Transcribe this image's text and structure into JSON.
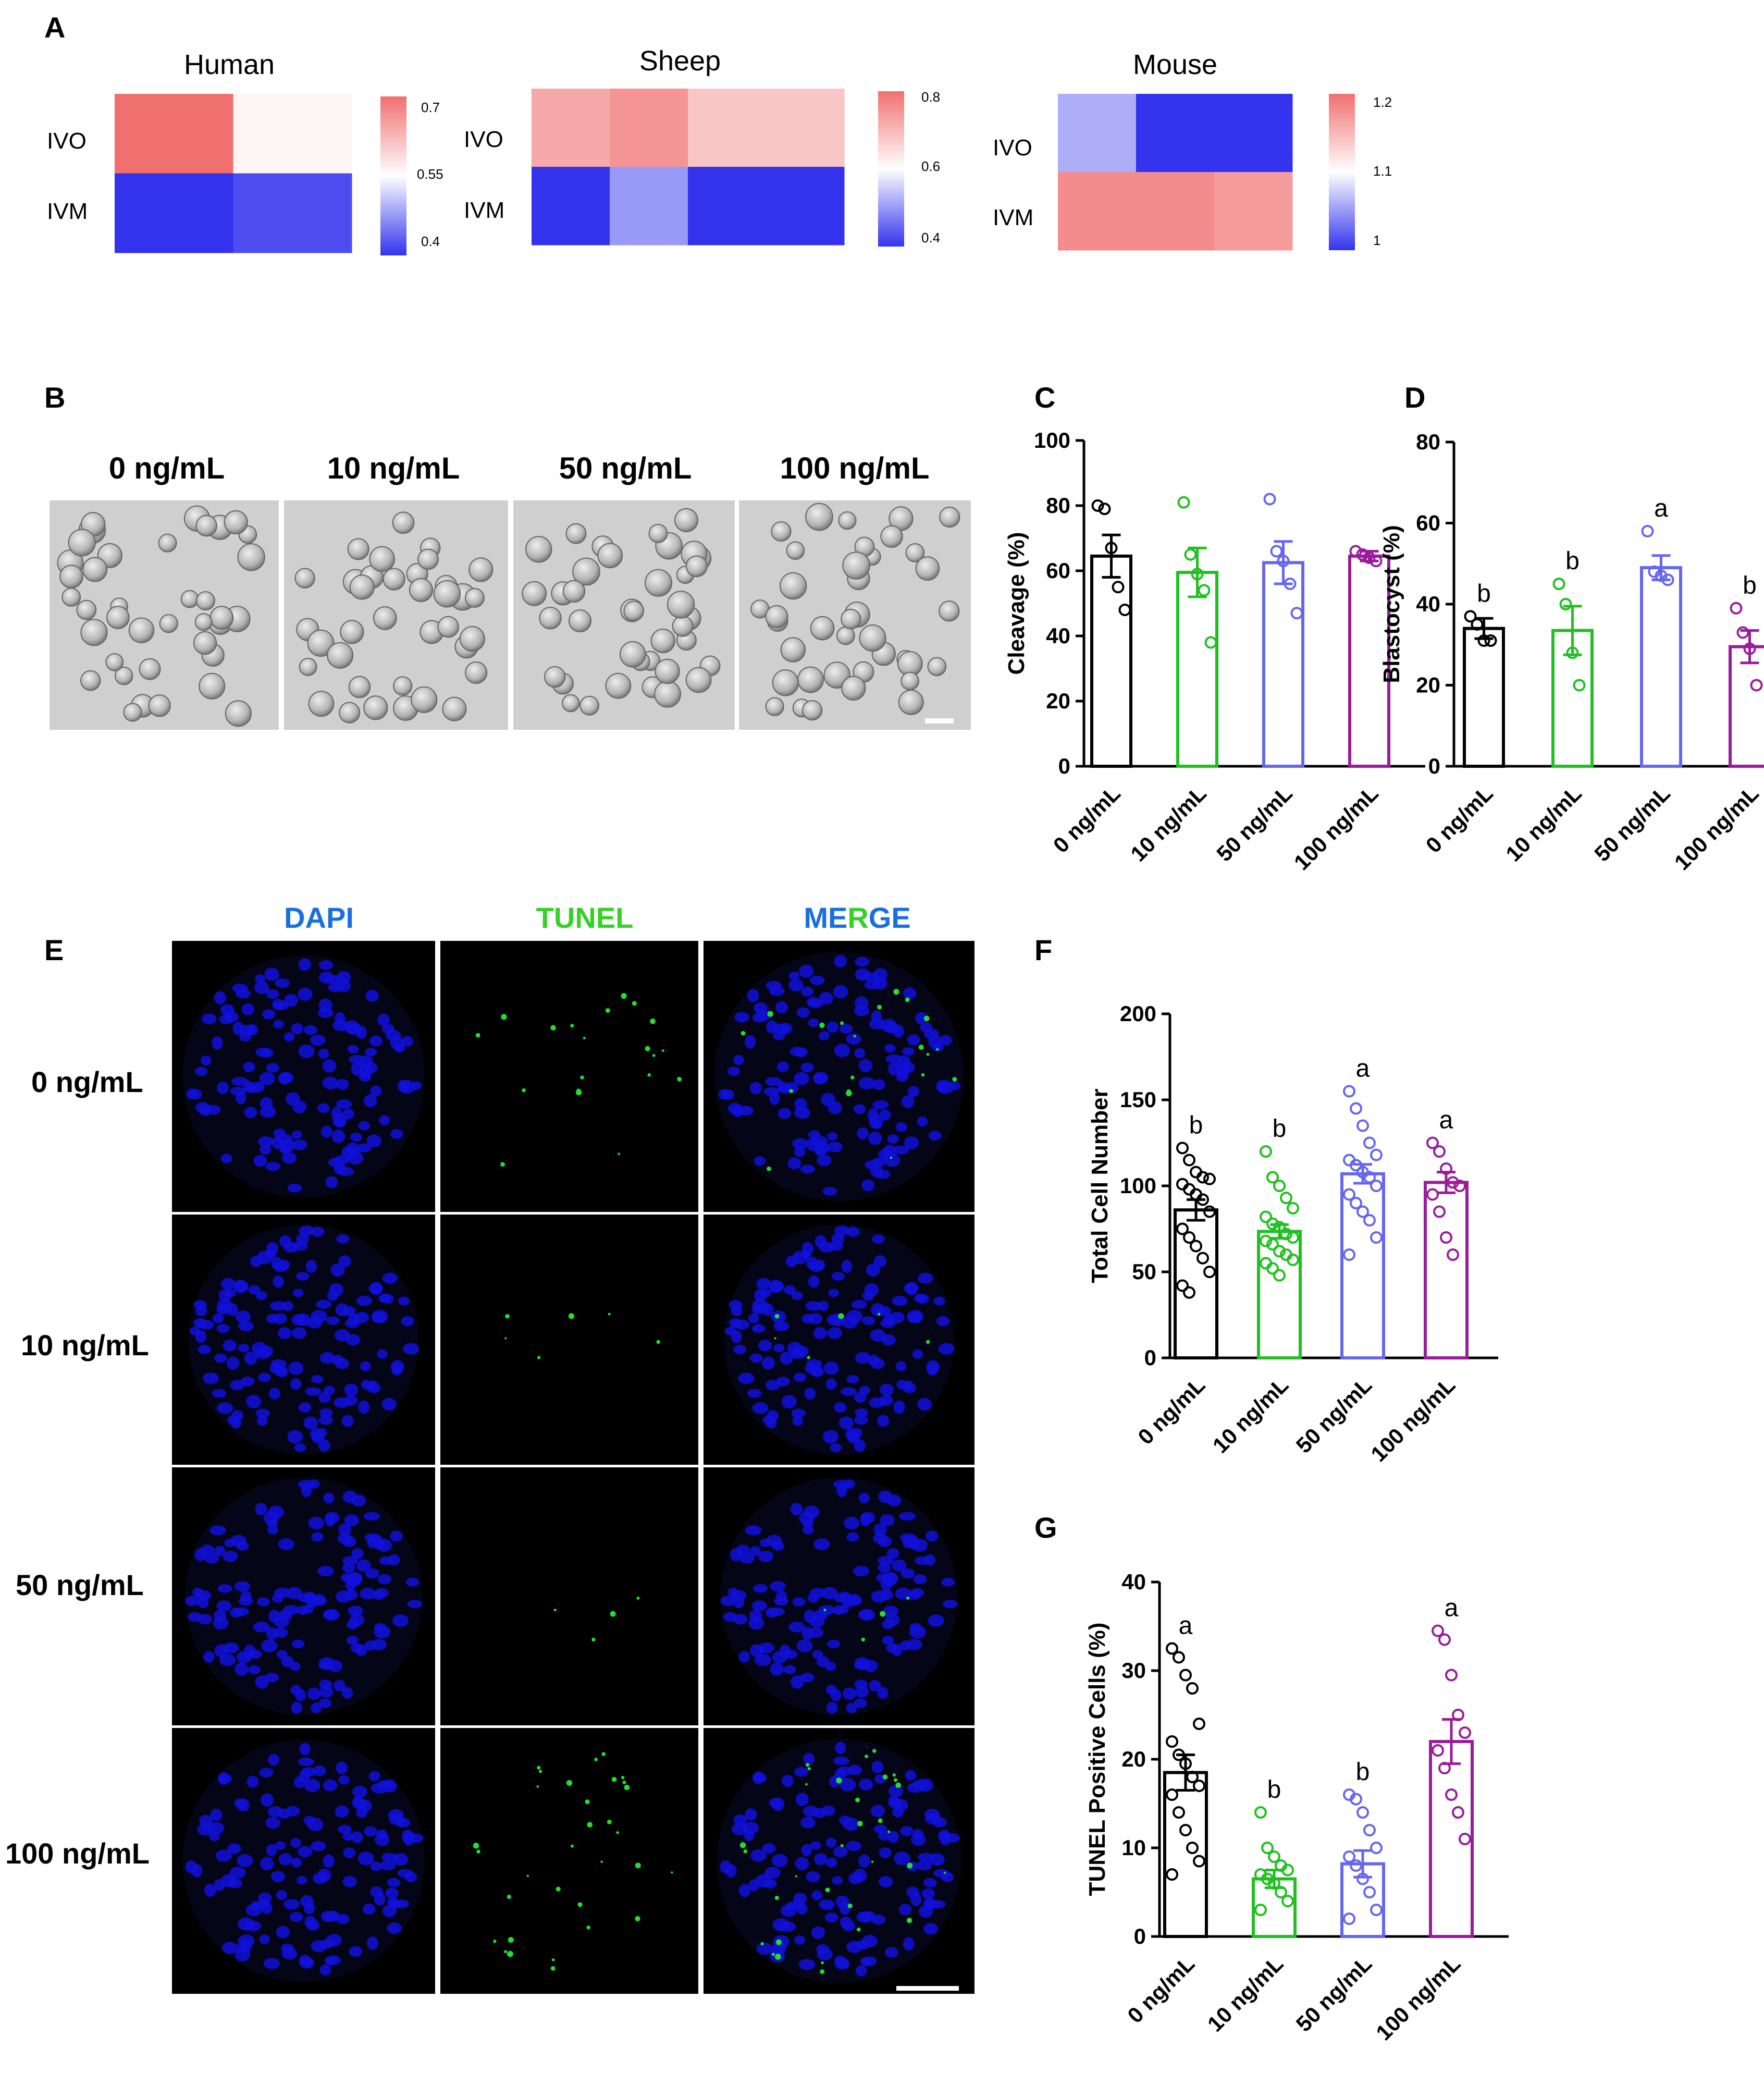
{
  "panels": {
    "A": "A",
    "B": "B",
    "C": "C",
    "D": "D",
    "E": "E",
    "F": "F",
    "G": "G"
  },
  "colors": {
    "black": "#000000",
    "green": "#1fc01f",
    "blue": "#6666ee",
    "purple": "#9a1c9a",
    "heat_high": "#f07070",
    "heat_low": "#3333ee",
    "heat_mid": "#ffffff",
    "dapi": "#1111dd",
    "tunel": "#22dd33"
  },
  "heatmaps": [
    {
      "title": "Human",
      "rows": [
        "IVO",
        "IVM"
      ],
      "ticks": [
        "0.7",
        "0.55",
        "0.4"
      ],
      "range": [
        0.4,
        0.7
      ],
      "values": [
        [
          0.7,
          0.56
        ],
        [
          0.4,
          0.42
        ]
      ]
    },
    {
      "title": "Sheep",
      "rows": [
        "IVO",
        "IVM"
      ],
      "ticks": [
        "0.8",
        "0.6",
        "0.4"
      ],
      "range": [
        0.4,
        0.8
      ],
      "values": [
        [
          0.72,
          0.75,
          0.68,
          0.68
        ],
        [
          0.4,
          0.5,
          0.4,
          0.4
        ]
      ]
    },
    {
      "title": "Mouse",
      "rows": [
        "IVO",
        "IVM"
      ],
      "ticks": [
        "1.2",
        "1.1",
        "1"
      ],
      "range": [
        1.0,
        1.2
      ],
      "values": [
        [
          1.06,
          1.0,
          1.0
        ],
        [
          1.18,
          1.18,
          1.17
        ]
      ]
    }
  ],
  "panel_b": {
    "labels": [
      "0 ng/mL",
      "10 ng/mL",
      "50 ng/mL",
      "100 ng/mL"
    ]
  },
  "panel_e": {
    "columns": [
      {
        "text": "DAPI",
        "color": "#1a6fe0"
      },
      {
        "text": "TUNEL",
        "color": "#36d126"
      }
    ],
    "merge": [
      "ME",
      "R",
      "GE"
    ],
    "rows": [
      "0 ng/mL",
      "10 ng/mL",
      "50 ng/mL",
      "100 ng/mL"
    ],
    "tunel_density": [
      0.5,
      0.15,
      0.1,
      0.8
    ]
  },
  "chart_data": [
    {
      "panel": "C",
      "type": "bar",
      "categories": [
        "0 ng/mL",
        "10 ng/mL",
        "50 ng/mL",
        "100 ng/mL"
      ],
      "values": [
        64.5,
        59.5,
        62.5,
        64.5
      ],
      "sem": [
        6.5,
        7.5,
        6.5,
        1.5
      ],
      "points": [
        [
          80,
          79,
          67,
          55,
          48
        ],
        [
          81,
          65,
          59,
          54,
          38
        ],
        [
          82,
          66,
          63,
          56,
          47
        ],
        [
          66,
          65,
          64,
          63
        ]
      ],
      "letters": [
        "",
        "",
        "",
        ""
      ],
      "ylabel": "Cleavage (%)",
      "ylim": [
        0,
        100
      ],
      "yticks": [
        0,
        20,
        40,
        60,
        80,
        100
      ]
    },
    {
      "panel": "D",
      "type": "bar",
      "categories": [
        "0 ng/mL",
        "10 ng/mL",
        "50 ng/mL",
        "100 ng/mL"
      ],
      "values": [
        34,
        33.5,
        49,
        29.5
      ],
      "sem": [
        2.5,
        6,
        3,
        4
      ],
      "points": [
        [
          37,
          35,
          31,
          31
        ],
        [
          45,
          40,
          28,
          20
        ],
        [
          58,
          48,
          47,
          46
        ],
        [
          39,
          33,
          29,
          20
        ]
      ],
      "letters": [
        "b",
        "b",
        "a",
        "b"
      ],
      "ylabel": "Blastocyst (%)",
      "ylim": [
        0,
        80
      ],
      "yticks": [
        0,
        20,
        40,
        60,
        80
      ]
    },
    {
      "panel": "F",
      "type": "bar",
      "categories": [
        "0 ng/mL",
        "10 ng/mL",
        "50 ng/mL",
        "100 ng/mL"
      ],
      "values": [
        86,
        73.5,
        107,
        102
      ],
      "sem": [
        6,
        4,
        5.5,
        6
      ],
      "points": [
        [
          122,
          115,
          108,
          105,
          104,
          101,
          98,
          95,
          92,
          85,
          75,
          70,
          65,
          58,
          50,
          42,
          38
        ],
        [
          120,
          105,
          100,
          93,
          87,
          82,
          78,
          76,
          72,
          70,
          68,
          66,
          62,
          60,
          57,
          55,
          52,
          48
        ],
        [
          155,
          145,
          135,
          125,
          118,
          115,
          112,
          108,
          105,
          100,
          95,
          90,
          85,
          80,
          70,
          60
        ],
        [
          125,
          120,
          110,
          102,
          100,
          95,
          85,
          70,
          60
        ]
      ],
      "letters": [
        "b",
        "b",
        "a",
        "a"
      ],
      "ylabel": "Total Cell Number",
      "ylim": [
        0,
        200
      ],
      "yticks": [
        0,
        50,
        100,
        150,
        200
      ]
    },
    {
      "panel": "G",
      "type": "bar",
      "categories": [
        "0 ng/mL",
        "10 ng/mL",
        "50 ng/mL",
        "100 ng/mL"
      ],
      "values": [
        18.5,
        6.5,
        8.2,
        22
      ],
      "sem": [
        2,
        1,
        1.5,
        2.5
      ],
      "points": [
        [
          32.5,
          31.5,
          29.5,
          28,
          24,
          22,
          20.5,
          19.5,
          18,
          17,
          16,
          14,
          12,
          10,
          8.5,
          7
        ],
        [
          14,
          10,
          9,
          8,
          7.5,
          7,
          6.5,
          6,
          5,
          4,
          3
        ],
        [
          16,
          15.5,
          14,
          12,
          10,
          9,
          8,
          6.5,
          5,
          3,
          2
        ],
        [
          34.5,
          33.5,
          29.5,
          25,
          23,
          21,
          19,
          16,
          14,
          11
        ]
      ],
      "letters": [
        "a",
        "b",
        "b",
        "a"
      ],
      "ylabel": "TUNEL Positive Cells (%)",
      "ylim": [
        0,
        40
      ],
      "yticks": [
        0,
        10,
        20,
        30,
        40
      ]
    }
  ]
}
